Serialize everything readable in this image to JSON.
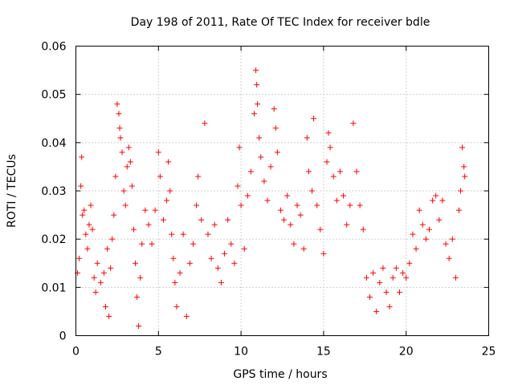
{
  "chart_data": {
    "type": "scatter",
    "title": "Day 198 of 2011, Rate Of TEC Index for receiver bdle",
    "xlabel": "GPS time / hours",
    "ylabel": "ROTI / TECUs",
    "xlim": [
      0,
      25
    ],
    "ylim": [
      0,
      0.06
    ],
    "x_ticks": [
      0,
      5,
      10,
      15,
      20,
      25
    ],
    "x_tick_labels": [
      "0",
      "5",
      "10",
      "15",
      "20",
      "25"
    ],
    "y_ticks": [
      0,
      0.01,
      0.02,
      0.03,
      0.04,
      0.05,
      0.06
    ],
    "y_tick_labels": [
      "0",
      "0.01",
      "0.02",
      "0.03",
      "0.04",
      "0.05",
      "0.06"
    ],
    "grid": true,
    "marker": "+",
    "color": "#ff0000",
    "series": [
      {
        "points": [
          [
            0.1,
            0.013
          ],
          [
            0.2,
            0.016
          ],
          [
            0.3,
            0.031
          ],
          [
            0.35,
            0.037
          ],
          [
            0.4,
            0.025
          ],
          [
            0.5,
            0.026
          ],
          [
            0.6,
            0.021
          ],
          [
            0.7,
            0.018
          ],
          [
            0.8,
            0.023
          ],
          [
            0.9,
            0.027
          ],
          [
            1.0,
            0.022
          ],
          [
            1.1,
            0.012
          ],
          [
            1.2,
            0.009
          ],
          [
            1.3,
            0.015
          ],
          [
            1.5,
            0.011
          ],
          [
            1.7,
            0.013
          ],
          [
            1.8,
            0.006
          ],
          [
            1.9,
            0.018
          ],
          [
            2.0,
            0.004
          ],
          [
            2.1,
            0.014
          ],
          [
            2.2,
            0.02
          ],
          [
            2.3,
            0.025
          ],
          [
            2.4,
            0.033
          ],
          [
            2.5,
            0.048
          ],
          [
            2.6,
            0.046
          ],
          [
            2.65,
            0.043
          ],
          [
            2.7,
            0.041
          ],
          [
            2.8,
            0.038
          ],
          [
            2.9,
            0.03
          ],
          [
            3.0,
            0.027
          ],
          [
            3.1,
            0.035
          ],
          [
            3.2,
            0.039
          ],
          [
            3.3,
            0.036
          ],
          [
            3.4,
            0.031
          ],
          [
            3.5,
            0.022
          ],
          [
            3.6,
            0.015
          ],
          [
            3.7,
            0.008
          ],
          [
            3.8,
            0.002
          ],
          [
            3.9,
            0.012
          ],
          [
            4.0,
            0.019
          ],
          [
            4.2,
            0.026
          ],
          [
            4.4,
            0.023
          ],
          [
            4.6,
            0.019
          ],
          [
            4.8,
            0.026
          ],
          [
            5.0,
            0.038
          ],
          [
            5.1,
            0.033
          ],
          [
            5.3,
            0.024
          ],
          [
            5.5,
            0.028
          ],
          [
            5.6,
            0.036
          ],
          [
            5.7,
            0.03
          ],
          [
            5.8,
            0.021
          ],
          [
            5.9,
            0.016
          ],
          [
            6.0,
            0.011
          ],
          [
            6.1,
            0.006
          ],
          [
            6.3,
            0.013
          ],
          [
            6.5,
            0.021
          ],
          [
            6.7,
            0.004
          ],
          [
            6.9,
            0.015
          ],
          [
            7.1,
            0.019
          ],
          [
            7.3,
            0.027
          ],
          [
            7.4,
            0.033
          ],
          [
            7.6,
            0.024
          ],
          [
            7.8,
            0.044
          ],
          [
            8.0,
            0.021
          ],
          [
            8.2,
            0.016
          ],
          [
            8.4,
            0.023
          ],
          [
            8.6,
            0.014
          ],
          [
            8.8,
            0.011
          ],
          [
            9.0,
            0.017
          ],
          [
            9.2,
            0.024
          ],
          [
            9.4,
            0.019
          ],
          [
            9.6,
            0.015
          ],
          [
            9.8,
            0.031
          ],
          [
            9.9,
            0.039
          ],
          [
            10.0,
            0.027
          ],
          [
            10.2,
            0.018
          ],
          [
            10.4,
            0.029
          ],
          [
            10.6,
            0.034
          ],
          [
            10.8,
            0.046
          ],
          [
            10.9,
            0.055
          ],
          [
            10.95,
            0.052
          ],
          [
            11.0,
            0.048
          ],
          [
            11.1,
            0.041
          ],
          [
            11.2,
            0.037
          ],
          [
            11.4,
            0.032
          ],
          [
            11.6,
            0.028
          ],
          [
            11.8,
            0.035
          ],
          [
            12.0,
            0.047
          ],
          [
            12.1,
            0.043
          ],
          [
            12.2,
            0.038
          ],
          [
            12.4,
            0.026
          ],
          [
            12.6,
            0.024
          ],
          [
            12.8,
            0.029
          ],
          [
            13.0,
            0.023
          ],
          [
            13.2,
            0.019
          ],
          [
            13.4,
            0.027
          ],
          [
            13.6,
            0.025
          ],
          [
            13.8,
            0.018
          ],
          [
            14.0,
            0.041
          ],
          [
            14.1,
            0.034
          ],
          [
            14.3,
            0.03
          ],
          [
            14.4,
            0.045
          ],
          [
            14.6,
            0.027
          ],
          [
            14.8,
            0.022
          ],
          [
            15.0,
            0.017
          ],
          [
            15.2,
            0.036
          ],
          [
            15.3,
            0.042
          ],
          [
            15.4,
            0.039
          ],
          [
            15.6,
            0.033
          ],
          [
            15.8,
            0.028
          ],
          [
            16.0,
            0.034
          ],
          [
            16.2,
            0.029
          ],
          [
            16.4,
            0.023
          ],
          [
            16.6,
            0.027
          ],
          [
            16.8,
            0.044
          ],
          [
            17.0,
            0.034
          ],
          [
            17.2,
            0.027
          ],
          [
            17.4,
            0.022
          ],
          [
            17.6,
            0.012
          ],
          [
            17.8,
            0.008
          ],
          [
            18.0,
            0.013
          ],
          [
            18.2,
            0.005
          ],
          [
            18.4,
            0.011
          ],
          [
            18.6,
            0.014
          ],
          [
            18.8,
            0.009
          ],
          [
            19.0,
            0.006
          ],
          [
            19.2,
            0.012
          ],
          [
            19.4,
            0.014
          ],
          [
            19.6,
            0.009
          ],
          [
            19.8,
            0.013
          ],
          [
            20.0,
            0.012
          ],
          [
            20.2,
            0.015
          ],
          [
            20.4,
            0.021
          ],
          [
            20.6,
            0.018
          ],
          [
            20.8,
            0.026
          ],
          [
            21.0,
            0.023
          ],
          [
            21.2,
            0.02
          ],
          [
            21.4,
            0.022
          ],
          [
            21.6,
            0.028
          ],
          [
            21.8,
            0.029
          ],
          [
            22.0,
            0.024
          ],
          [
            22.2,
            0.028
          ],
          [
            22.4,
            0.019
          ],
          [
            22.6,
            0.016
          ],
          [
            22.8,
            0.02
          ],
          [
            23.0,
            0.012
          ],
          [
            23.2,
            0.026
          ],
          [
            23.3,
            0.03
          ],
          [
            23.4,
            0.039
          ],
          [
            23.5,
            0.035
          ],
          [
            23.55,
            0.033
          ]
        ]
      }
    ]
  }
}
